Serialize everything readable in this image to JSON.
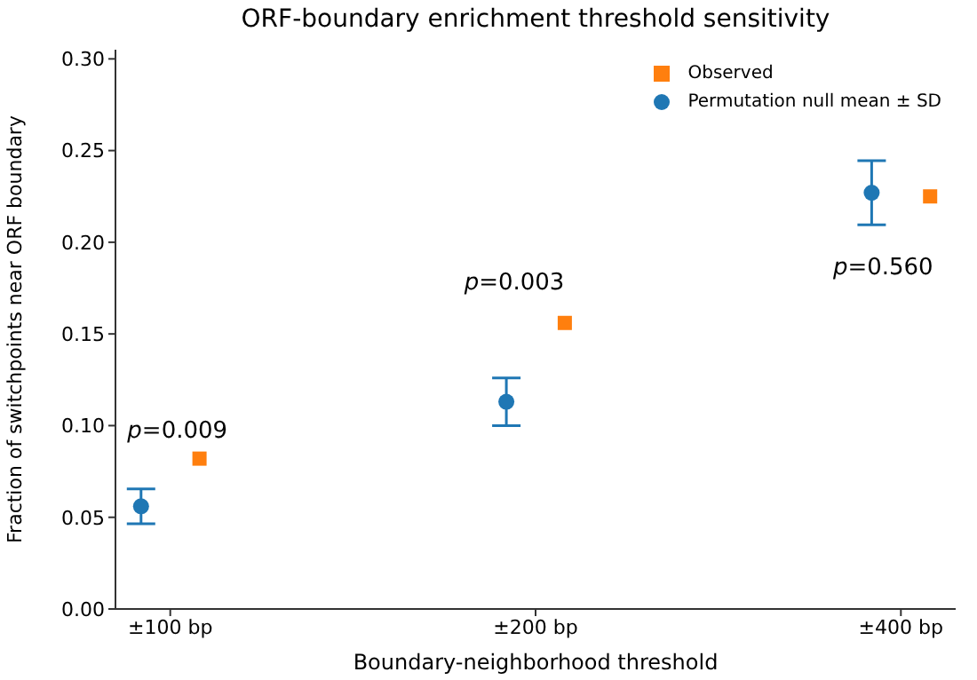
{
  "chart_data": {
    "type": "scatter",
    "title": "ORF-boundary enrichment threshold sensitivity",
    "xlabel": "Boundary-neighborhood threshold",
    "ylabel": "Fraction of switchpoints near ORF boundary",
    "categories": [
      "±100 bp",
      "±200 bp",
      "±400 bp"
    ],
    "series": [
      {
        "name": "Observed",
        "color": "#ff7f0e",
        "marker": "square",
        "values": [
          0.082,
          0.156,
          0.225
        ]
      },
      {
        "name": "Permutation null mean ± SD",
        "color": "#1f77b4",
        "marker": "circle",
        "values": [
          0.056,
          0.113,
          0.227
        ],
        "errors": [
          0.0095,
          0.013,
          0.0175
        ]
      }
    ],
    "ylim": [
      0,
      0.305
    ],
    "yticks": [
      {
        "value": 0,
        "label": "0.00"
      },
      {
        "value": 0.05,
        "label": "0.05"
      },
      {
        "value": 0.1,
        "label": "0.10"
      },
      {
        "value": 0.15,
        "label": "0.15"
      },
      {
        "value": 0.2,
        "label": "0.20"
      },
      {
        "value": 0.25,
        "label": "0.25"
      },
      {
        "value": 0.3,
        "label": "0.30"
      }
    ],
    "annotations": [
      "p=0.009",
      "p=0.003",
      "p=0.560"
    ],
    "legend": "top right"
  }
}
